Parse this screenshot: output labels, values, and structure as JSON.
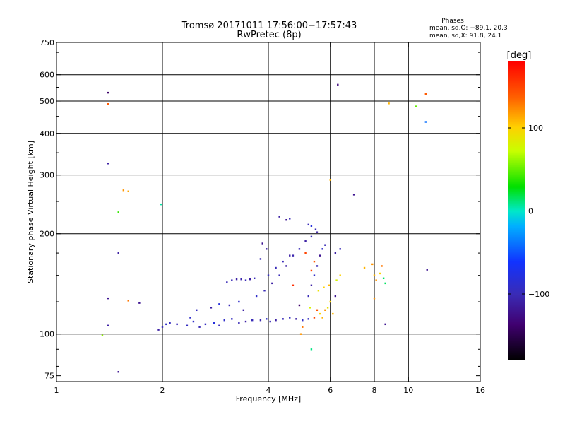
{
  "header": {
    "title_line1": "Tromsø 20171011 17:56:00−17:57:43",
    "title_line2": "RwPretec (8p)",
    "phases_heading": "Phases",
    "phases_o": "mean, sd,O: −89.1, 20.3",
    "phases_x": "mean, sd,X:  91.8, 24.1"
  },
  "colorbar": {
    "unit_label": "[deg]",
    "tick_labels": [
      "100",
      "0",
      "−100"
    ],
    "tick_values": [
      100,
      0,
      -100
    ],
    "range": [
      -180,
      180
    ]
  },
  "chart_data": {
    "type": "scatter",
    "xlabel": "Frequency [MHz]",
    "ylabel": "Stationary phase Virtual Height [km]",
    "x_scale": "log",
    "y_scale": "log",
    "xlim": [
      1,
      16
    ],
    "ylim": [
      72,
      750
    ],
    "x_ticks": [
      1,
      2,
      4,
      6,
      8,
      10,
      16
    ],
    "x_tick_labels": [
      "1",
      "2",
      "4",
      "6",
      "8",
      "10",
      "16"
    ],
    "x_grid": [
      2,
      4,
      6,
      8,
      10
    ],
    "y_ticks": [
      75,
      100,
      200,
      300,
      400,
      500,
      600,
      750
    ],
    "y_tick_labels": [
      "75",
      "100",
      "200",
      "300",
      "400",
      "500",
      "600",
      "750"
    ],
    "y_grid": [
      100,
      200,
      300,
      400,
      500,
      600
    ],
    "grid": true,
    "colorscale": "phase, deg (−180 to 180)",
    "points": [
      [
        1.4,
        530,
        -140
      ],
      [
        1.4,
        490,
        140
      ],
      [
        1.4,
        325,
        -110
      ],
      [
        1.4,
        128,
        -120
      ],
      [
        1.4,
        106,
        -110
      ],
      [
        1.5,
        175,
        -110
      ],
      [
        1.5,
        232,
        40
      ],
      [
        1.5,
        77,
        -120
      ],
      [
        1.55,
        270,
        120
      ],
      [
        1.6,
        268,
        115
      ],
      [
        1.6,
        126,
        130
      ],
      [
        1.72,
        124,
        -120
      ],
      [
        1.35,
        99,
        60
      ],
      [
        1.98,
        245,
        5
      ],
      [
        1.95,
        103,
        -110
      ],
      [
        2.0,
        105,
        -100
      ],
      [
        2.05,
        107,
        -90
      ],
      [
        2.1,
        108,
        -95
      ],
      [
        2.2,
        107,
        -100
      ],
      [
        2.35,
        106,
        -95
      ],
      [
        2.45,
        109,
        -90
      ],
      [
        2.55,
        105,
        -100
      ],
      [
        2.65,
        107,
        -95
      ],
      [
        2.8,
        108,
        -80
      ],
      [
        2.9,
        106,
        -100
      ],
      [
        3.0,
        110,
        -90
      ],
      [
        3.15,
        111,
        -95
      ],
      [
        3.3,
        108,
        -100
      ],
      [
        3.45,
        109,
        -110
      ],
      [
        3.6,
        110,
        -100
      ],
      [
        3.8,
        110,
        -105
      ],
      [
        3.95,
        111,
        -90
      ],
      [
        4.05,
        109,
        -100
      ],
      [
        4.2,
        110,
        -110
      ],
      [
        4.4,
        111,
        -100
      ],
      [
        4.6,
        112,
        -95
      ],
      [
        4.8,
        111,
        -110
      ],
      [
        5.0,
        110,
        -90
      ],
      [
        5.2,
        111,
        -95
      ],
      [
        2.4,
        112,
        -90
      ],
      [
        2.5,
        118,
        -95
      ],
      [
        2.75,
        120,
        -110
      ],
      [
        2.9,
        123,
        -80
      ],
      [
        3.1,
        122,
        -100
      ],
      [
        3.3,
        125,
        -90
      ],
      [
        3.4,
        118,
        -110
      ],
      [
        3.15,
        145,
        -100
      ],
      [
        3.25,
        146,
        -110
      ],
      [
        3.35,
        146,
        -105
      ],
      [
        3.45,
        145,
        -100
      ],
      [
        3.55,
        146,
        -110
      ],
      [
        3.65,
        147,
        -100
      ],
      [
        3.05,
        143,
        -100
      ],
      [
        3.7,
        130,
        -90
      ],
      [
        3.9,
        135,
        -100
      ],
      [
        4.1,
        142,
        -110
      ],
      [
        4.3,
        150,
        -100
      ],
      [
        4.5,
        160,
        -110
      ],
      [
        4.7,
        172,
        -105
      ],
      [
        4.9,
        180,
        -100
      ],
      [
        5.1,
        190,
        -110
      ],
      [
        5.3,
        196,
        -100
      ],
      [
        5.5,
        202,
        -110
      ],
      [
        4.0,
        150,
        -95
      ],
      [
        4.2,
        158,
        -100
      ],
      [
        4.4,
        165,
        -100
      ],
      [
        4.6,
        172,
        -110
      ],
      [
        4.3,
        225,
        -110
      ],
      [
        4.5,
        220,
        -120
      ],
      [
        4.6,
        222,
        -100
      ],
      [
        5.2,
        213,
        -100
      ],
      [
        5.3,
        211,
        -80
      ],
      [
        5.45,
        206,
        -100
      ],
      [
        3.85,
        187,
        -120
      ],
      [
        3.8,
        168,
        -100
      ],
      [
        3.95,
        180,
        -110
      ],
      [
        5.2,
        130,
        -100
      ],
      [
        5.3,
        140,
        -110
      ],
      [
        5.4,
        150,
        -90
      ],
      [
        5.5,
        160,
        -100
      ],
      [
        5.6,
        172,
        -120
      ],
      [
        5.7,
        180,
        -90
      ],
      [
        5.8,
        185,
        -100
      ],
      [
        5.6,
        115,
        100
      ],
      [
        5.7,
        112,
        110
      ],
      [
        5.8,
        118,
        120
      ],
      [
        5.9,
        120,
        90
      ],
      [
        6.0,
        125,
        100
      ],
      [
        6.1,
        115,
        110
      ],
      [
        5.5,
        118,
        140
      ],
      [
        5.4,
        112,
        150
      ],
      [
        5.25,
        120,
        80
      ],
      [
        5.55,
        135,
        90
      ],
      [
        5.75,
        138,
        100
      ],
      [
        5.95,
        140,
        110
      ],
      [
        6.25,
        145,
        80
      ],
      [
        6.4,
        150,
        100
      ],
      [
        6.2,
        175,
        -110
      ],
      [
        6.4,
        180,
        -100
      ],
      [
        6.2,
        130,
        -120
      ],
      [
        5.0,
        105,
        130
      ],
      [
        4.9,
        122,
        -140
      ],
      [
        5.1,
        175,
        150
      ],
      [
        4.7,
        140,
        160
      ],
      [
        5.3,
        155,
        150
      ],
      [
        5.4,
        165,
        140
      ],
      [
        5.3,
        90,
        10
      ],
      [
        4.95,
        100,
        120
      ],
      [
        6.0,
        290,
        110
      ],
      [
        6.3,
        560,
        -130
      ],
      [
        7.0,
        262,
        -120
      ],
      [
        7.5,
        158,
        110
      ],
      [
        7.9,
        162,
        120
      ],
      [
        8.0,
        150,
        110
      ],
      [
        8.1,
        145,
        120
      ],
      [
        8.3,
        152,
        100
      ],
      [
        8.5,
        147,
        15
      ],
      [
        8.6,
        142,
        15
      ],
      [
        8.4,
        160,
        130
      ],
      [
        8.0,
        128,
        120
      ],
      [
        8.6,
        107,
        -120
      ],
      [
        8.8,
        492,
        110
      ],
      [
        10.5,
        482,
        50
      ],
      [
        11.2,
        525,
        140
      ],
      [
        11.2,
        433,
        -40
      ],
      [
        11.3,
        156,
        -120
      ]
    ]
  }
}
